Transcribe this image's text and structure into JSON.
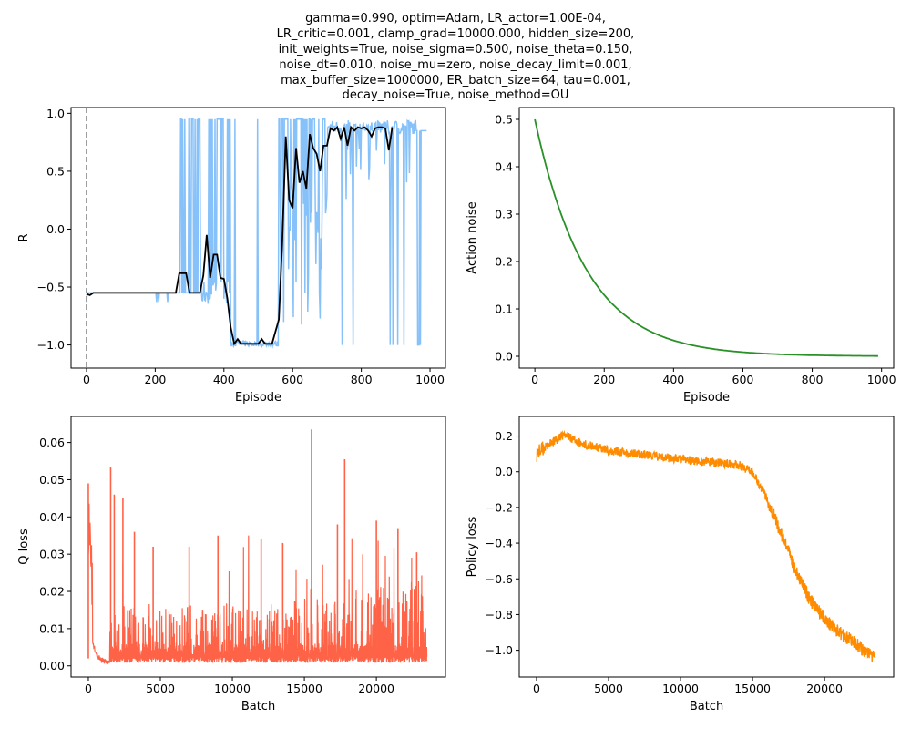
{
  "suptitle": [
    "gamma=0.990, optim=Adam, LR_actor=1.00E-04,",
    "LR_critic=0.001, clamp_grad=10000.000, hidden_size=200,",
    "init_weights=True, noise_sigma=0.500, noise_theta=0.150,",
    "noise_dt=0.010, noise_mu=zero, noise_decay_limit=0.001,",
    "max_buffer_size=1000000, ER_batch_size=64, tau=0.001,",
    "decay_noise=True, noise_method=OU"
  ],
  "colors": {
    "raw_reward": "#87c1f9",
    "smoothed_reward": "#000000",
    "vline": "#8c8c8c",
    "noise": "#2a9128",
    "q_loss": "#ff6347",
    "policy_loss": "#ff8c00"
  },
  "chart_data": [
    {
      "type": "line",
      "name": "reward",
      "xlabel": "Episode",
      "ylabel": "R",
      "xlim": [
        -45,
        1045
      ],
      "ylim": [
        -1.2,
        1.05
      ],
      "xticks": [
        0,
        200,
        400,
        600,
        800,
        1000
      ],
      "yticks": [
        -1.0,
        -0.5,
        0.0,
        0.5,
        1.0
      ],
      "ytick_labels": [
        "−1.0",
        "−0.5",
        "0.0",
        "0.5",
        "1.0"
      ],
      "vline_x": 0,
      "series": [
        {
          "name": "smoothed",
          "x": [
            0,
            10,
            20,
            260,
            270,
            290,
            300,
            330,
            340,
            350,
            360,
            370,
            380,
            390,
            400,
            410,
            420,
            430,
            440,
            450,
            460,
            480,
            500,
            510,
            520,
            540,
            560,
            570,
            580,
            590,
            600,
            610,
            620,
            630,
            640,
            650,
            660,
            670,
            680,
            690,
            700,
            710,
            720,
            730,
            740,
            750,
            760,
            770,
            780,
            790,
            800,
            810,
            820,
            830,
            840,
            850,
            860,
            870,
            880,
            890
          ],
          "y": [
            -0.56,
            -0.57,
            -0.55,
            -0.55,
            -0.38,
            -0.38,
            -0.55,
            -0.55,
            -0.4,
            -0.05,
            -0.42,
            -0.22,
            -0.22,
            -0.42,
            -0.43,
            -0.6,
            -0.85,
            -0.99,
            -0.95,
            -0.99,
            -0.99,
            -0.99,
            -0.99,
            -0.95,
            -0.99,
            -0.99,
            -0.78,
            -0.1,
            0.8,
            0.25,
            0.18,
            0.7,
            0.4,
            0.5,
            0.35,
            0.82,
            0.7,
            0.65,
            0.5,
            0.72,
            0.72,
            0.87,
            0.85,
            0.88,
            0.78,
            0.88,
            0.72,
            0.88,
            0.85,
            0.88,
            0.87,
            0.88,
            0.85,
            0.8,
            0.87,
            0.88,
            0.88,
            0.87,
            0.68,
            0.88
          ]
        }
      ]
    },
    {
      "type": "line",
      "name": "action_noise",
      "xlabel": "Episode",
      "ylabel": "Action noise",
      "xlim": [
        -45,
        1035
      ],
      "ylim": [
        -0.025,
        0.525
      ],
      "xticks": [
        0,
        200,
        400,
        600,
        800,
        1000
      ],
      "yticks": [
        0.0,
        0.1,
        0.2,
        0.3,
        0.4,
        0.5
      ],
      "ytick_labels": [
        "0.0",
        "0.1",
        "0.2",
        "0.3",
        "0.4",
        "0.5"
      ],
      "series": [
        {
          "name": "noise",
          "formula": "0.5*exp(-x/148)",
          "x_range": [
            0,
            990
          ]
        }
      ]
    },
    {
      "type": "line",
      "name": "q_loss",
      "xlabel": "Batch",
      "ylabel": "Q loss",
      "xlim": [
        -1200,
        24800
      ],
      "ylim": [
        -0.003,
        0.067
      ],
      "xticks": [
        0,
        5000,
        10000,
        15000,
        20000
      ],
      "yticks": [
        0.0,
        0.01,
        0.02,
        0.03,
        0.04,
        0.05,
        0.06
      ],
      "ytick_labels": [
        "0.00",
        "0.01",
        "0.02",
        "0.03",
        "0.04",
        "0.05",
        "0.06"
      ],
      "series": [
        {
          "name": "q_loss",
          "spikes": [
            {
              "x": 0,
              "y": 0.049
            },
            {
              "x": 1550,
              "y": 0.0535
            },
            {
              "x": 1800,
              "y": 0.046
            },
            {
              "x": 2400,
              "y": 0.045
            },
            {
              "x": 3200,
              "y": 0.036
            },
            {
              "x": 4500,
              "y": 0.032
            },
            {
              "x": 7000,
              "y": 0.032
            },
            {
              "x": 9000,
              "y": 0.035
            },
            {
              "x": 12000,
              "y": 0.034
            },
            {
              "x": 13500,
              "y": 0.033
            },
            {
              "x": 15500,
              "y": 0.0635
            },
            {
              "x": 17800,
              "y": 0.0555
            },
            {
              "x": 17300,
              "y": 0.038
            },
            {
              "x": 20000,
              "y": 0.039
            },
            {
              "x": 21500,
              "y": 0.037
            },
            {
              "x": 22800,
              "y": 0.0305
            }
          ]
        }
      ]
    },
    {
      "type": "line",
      "name": "policy_loss",
      "xlabel": "Batch",
      "ylabel": "Policy loss",
      "xlim": [
        -1200,
        24800
      ],
      "ylim": [
        -1.15,
        0.31
      ],
      "xticks": [
        0,
        5000,
        10000,
        15000,
        20000
      ],
      "yticks": [
        -1.0,
        -0.8,
        -0.6,
        -0.4,
        -0.2,
        0.0,
        0.2
      ],
      "ytick_labels": [
        "−1.0",
        "−0.8",
        "−0.6",
        "−0.4",
        "−0.2",
        "0.0",
        "0.2"
      ],
      "series": [
        {
          "name": "policy_loss",
          "x": [
            0,
            1000,
            2000,
            3000,
            5000,
            8000,
            11000,
            14000,
            15000,
            16000,
            17000,
            18000,
            19000,
            20000,
            21000,
            22000,
            23000,
            23500
          ],
          "y": [
            0.1,
            0.16,
            0.21,
            0.16,
            0.12,
            0.09,
            0.06,
            0.04,
            0.0,
            -0.15,
            -0.35,
            -0.55,
            -0.72,
            -0.82,
            -0.9,
            -0.95,
            -1.02,
            -1.05
          ]
        }
      ]
    }
  ]
}
